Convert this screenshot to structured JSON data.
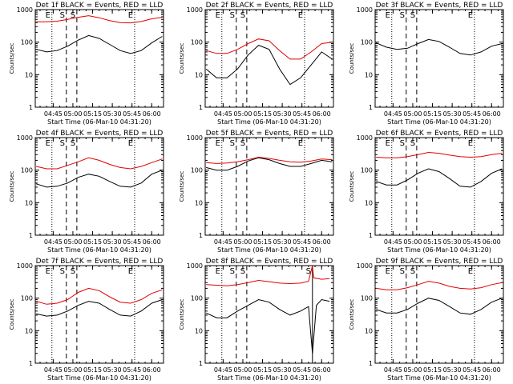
{
  "figure": {
    "background": "#ffffff",
    "axis_color": "#000000",
    "events_color": "#000000",
    "lld_color": "#e00000",
    "rows": 3,
    "cols": 3
  },
  "chart_data": [
    {
      "type": "line",
      "title": "Det 1f BLACK = Events, RED = LLD",
      "xlabel": "Start Time (06-Mar-10 04:31:20)",
      "ylabel": "Counts/sec",
      "yscale": "log",
      "ylim": [
        1,
        1000
      ],
      "yticks": [
        "1",
        "10",
        "100",
        "1000"
      ],
      "xticks": [
        "04:45",
        "05:00",
        "05:15",
        "05:30",
        "05:45",
        "06:00"
      ],
      "xlim": [
        "04:31:20",
        "06:09:00"
      ],
      "markers": [
        {
          "label": "E",
          "time": "04:44:00",
          "style": "dotted"
        },
        {
          "label": "S",
          "time": "04:55:00",
          "style": "dashed"
        },
        {
          "label": "S",
          "time": "05:03:00",
          "style": "dashed"
        },
        {
          "label": "E",
          "time": "05:47:00",
          "style": "dotted"
        }
      ],
      "series": [
        {
          "name": "Events",
          "x": [
            "04:32",
            "04:40",
            "04:48",
            "04:56",
            "05:04",
            "05:12",
            "05:20",
            "05:28",
            "05:36",
            "05:44",
            "05:52",
            "06:00",
            "06:08"
          ],
          "y": [
            60,
            50,
            55,
            75,
            115,
            160,
            130,
            85,
            55,
            45,
            55,
            95,
            150
          ]
        },
        {
          "name": "LLD",
          "x": [
            "04:32",
            "04:40",
            "04:48",
            "04:56",
            "05:04",
            "05:12",
            "05:20",
            "05:28",
            "05:36",
            "05:44",
            "05:52",
            "06:00",
            "06:08"
          ],
          "y": [
            420,
            420,
            440,
            500,
            580,
            650,
            560,
            460,
            400,
            390,
            430,
            520,
            580
          ]
        }
      ]
    },
    {
      "type": "line",
      "title": "Det 2f BLACK = Events, RED = LLD",
      "xlabel": "Start Time (06-Mar-10 04:31:20)",
      "ylabel": "Counts/sec",
      "yscale": "log",
      "ylim": [
        1,
        1000
      ],
      "yticks": [
        "1",
        "10",
        "100",
        "1000"
      ],
      "xticks": [
        "04:45",
        "05:00",
        "05:15",
        "05:30",
        "05:45",
        "06:00"
      ],
      "xlim": [
        "04:31:20",
        "06:09:00"
      ],
      "markers": [
        {
          "label": "E",
          "time": "04:44:00",
          "style": "dotted"
        },
        {
          "label": "S",
          "time": "04:55:00",
          "style": "dashed"
        },
        {
          "label": "S",
          "time": "05:03:00",
          "style": "dashed"
        },
        {
          "label": "E",
          "time": "05:47:00",
          "style": "dotted"
        }
      ],
      "series": [
        {
          "name": "Events",
          "x": [
            "04:32",
            "04:40",
            "04:48",
            "04:56",
            "05:04",
            "05:12",
            "05:20",
            "05:28",
            "05:36",
            "05:44",
            "05:52",
            "06:00",
            "06:08"
          ],
          "y": [
            15,
            8,
            8,
            15,
            40,
            80,
            60,
            15,
            5,
            8,
            20,
            50,
            30
          ]
        },
        {
          "name": "LLD",
          "x": [
            "04:32",
            "04:40",
            "04:48",
            "04:56",
            "05:04",
            "05:12",
            "05:20",
            "05:28",
            "05:36",
            "05:44",
            "05:52",
            "06:00",
            "06:08"
          ],
          "y": [
            55,
            45,
            45,
            60,
            90,
            125,
            110,
            55,
            30,
            30,
            50,
            90,
            100
          ]
        }
      ]
    },
    {
      "type": "line",
      "title": "Det 3f BLACK = Events, RED = LLD",
      "xlabel": "Start Time (06-Mar-10 04:31:20)",
      "ylabel": "Counts/sec",
      "yscale": "log",
      "ylim": [
        1,
        1000
      ],
      "yticks": [
        "1",
        "10",
        "100",
        "1000"
      ],
      "xticks": [
        "04:45",
        "05:00",
        "05:15",
        "05:30",
        "05:45",
        "06:00"
      ],
      "xlim": [
        "04:31:20",
        "06:09:00"
      ],
      "markers": [
        {
          "label": "E",
          "time": "04:44:00",
          "style": "dotted"
        },
        {
          "label": "S",
          "time": "04:55:00",
          "style": "dashed"
        },
        {
          "label": "S",
          "time": "05:03:00",
          "style": "dashed"
        },
        {
          "label": "E",
          "time": "05:47:00",
          "style": "dotted"
        }
      ],
      "series": [
        {
          "name": "Events",
          "x": [
            "04:32",
            "04:40",
            "04:48",
            "04:56",
            "05:04",
            "05:12",
            "05:20",
            "05:28",
            "05:36",
            "05:44",
            "05:52",
            "06:00",
            "06:08"
          ],
          "y": [
            95,
            70,
            60,
            65,
            90,
            120,
            105,
            70,
            45,
            40,
            50,
            75,
            90
          ]
        }
      ]
    },
    {
      "type": "line",
      "title": "Det 4f BLACK = Events, RED = LLD",
      "xlabel": "Start Time (06-Mar-10 04:31:20)",
      "ylabel": "Counts/sec",
      "yscale": "log",
      "ylim": [
        1,
        1000
      ],
      "yticks": [
        "1",
        "10",
        "100",
        "1000"
      ],
      "xticks": [
        "04:45",
        "05:00",
        "05:15",
        "05:30",
        "05:45",
        "06:00"
      ],
      "xlim": [
        "04:31:20",
        "06:09:00"
      ],
      "markers": [
        {
          "label": "E",
          "time": "04:44:00",
          "style": "dotted"
        },
        {
          "label": "S",
          "time": "04:55:00",
          "style": "dashed"
        },
        {
          "label": "S",
          "time": "05:03:00",
          "style": "dashed"
        },
        {
          "label": "E",
          "time": "05:47:00",
          "style": "dotted"
        }
      ],
      "series": [
        {
          "name": "Events",
          "x": [
            "04:32",
            "04:40",
            "04:48",
            "04:56",
            "05:04",
            "05:12",
            "05:20",
            "05:28",
            "05:36",
            "05:44",
            "05:52",
            "06:00",
            "06:08"
          ],
          "y": [
            38,
            30,
            32,
            40,
            60,
            75,
            65,
            45,
            32,
            30,
            40,
            75,
            100
          ]
        },
        {
          "name": "LLD",
          "x": [
            "04:32",
            "04:40",
            "04:48",
            "04:56",
            "05:04",
            "05:12",
            "05:20",
            "05:28",
            "05:36",
            "05:44",
            "05:52",
            "06:00",
            "06:08"
          ],
          "y": [
            130,
            110,
            110,
            140,
            180,
            240,
            200,
            150,
            120,
            110,
            130,
            170,
            220
          ]
        }
      ]
    },
    {
      "type": "line",
      "title": "Det 5f BLACK = Events, RED = LLD",
      "xlabel": "Start Time (06-Mar-10 04:31:20)",
      "ylabel": "Counts/sec",
      "yscale": "log",
      "ylim": [
        1,
        1000
      ],
      "yticks": [
        "1",
        "10",
        "100",
        "1000"
      ],
      "xticks": [
        "04:45",
        "05:00",
        "05:15",
        "05:30",
        "05:45",
        "06:00"
      ],
      "xlim": [
        "04:31:20",
        "06:09:00"
      ],
      "markers": [
        {
          "label": "E",
          "time": "04:44:00",
          "style": "dotted"
        },
        {
          "label": "S",
          "time": "04:55:00",
          "style": "dashed"
        },
        {
          "label": "S",
          "time": "05:03:00",
          "style": "dashed"
        },
        {
          "label": "E",
          "time": "05:47:00",
          "style": "dotted"
        }
      ],
      "series": [
        {
          "name": "Events",
          "x": [
            "04:32",
            "04:40",
            "04:48",
            "04:56",
            "05:04",
            "05:12",
            "05:20",
            "05:28",
            "05:36",
            "05:44",
            "05:52",
            "06:00",
            "06:08"
          ],
          "y": [
            120,
            100,
            100,
            130,
            190,
            240,
            210,
            160,
            130,
            130,
            160,
            200,
            180
          ]
        },
        {
          "name": "LLD",
          "x": [
            "04:32",
            "04:40",
            "04:48",
            "04:56",
            "05:04",
            "05:12",
            "05:20",
            "05:28",
            "05:36",
            "05:44",
            "05:52",
            "06:00",
            "06:08"
          ],
          "y": [
            170,
            160,
            165,
            180,
            210,
            250,
            230,
            200,
            180,
            175,
            190,
            220,
            210
          ]
        }
      ]
    },
    {
      "type": "line",
      "title": "Det 6f BLACK = Events, RED = LLD",
      "xlabel": "Start Time (06-Mar-10 04:31:20)",
      "ylabel": "Counts/sec",
      "yscale": "log",
      "ylim": [
        1,
        1000
      ],
      "yticks": [
        "1",
        "10",
        "100",
        "1000"
      ],
      "xticks": [
        "04:45",
        "05:00",
        "05:15",
        "05:30",
        "05:45",
        "06:00"
      ],
      "xlim": [
        "04:31:20",
        "06:09:00"
      ],
      "markers": [
        {
          "label": "E",
          "time": "04:44:00",
          "style": "dotted"
        },
        {
          "label": "S",
          "time": "04:55:00",
          "style": "dashed"
        },
        {
          "label": "S",
          "time": "05:03:00",
          "style": "dashed"
        },
        {
          "label": "E",
          "time": "05:47:00",
          "style": "dotted"
        }
      ],
      "series": [
        {
          "name": "Events",
          "x": [
            "04:32",
            "04:40",
            "04:48",
            "04:56",
            "05:04",
            "05:12",
            "05:20",
            "05:28",
            "05:36",
            "05:44",
            "05:52",
            "06:00",
            "06:08"
          ],
          "y": [
            45,
            35,
            35,
            50,
            80,
            110,
            90,
            55,
            32,
            30,
            45,
            80,
            110
          ]
        },
        {
          "name": "LLD",
          "x": [
            "04:32",
            "04:40",
            "04:48",
            "04:56",
            "05:04",
            "05:12",
            "05:20",
            "05:28",
            "05:36",
            "05:44",
            "05:52",
            "06:00",
            "06:08"
          ],
          "y": [
            250,
            240,
            240,
            260,
            300,
            350,
            330,
            290,
            260,
            250,
            260,
            300,
            330
          ]
        }
      ]
    },
    {
      "type": "line",
      "title": "Det 7f BLACK = Events, RED = LLD",
      "xlabel": "Start Time (06-Mar-10 04:31:20)",
      "ylabel": "Counts/sec",
      "yscale": "log",
      "ylim": [
        1,
        1000
      ],
      "yticks": [
        "1",
        "10",
        "100",
        "1000"
      ],
      "xticks": [
        "04:45",
        "05:00",
        "05:15",
        "05:30",
        "05:45",
        "06:00"
      ],
      "xlim": [
        "04:31:20",
        "06:09:00"
      ],
      "markers": [
        {
          "label": "E",
          "time": "04:44:00",
          "style": "dotted"
        },
        {
          "label": "S",
          "time": "04:55:00",
          "style": "dashed"
        },
        {
          "label": "S",
          "time": "05:03:00",
          "style": "dashed"
        },
        {
          "label": "E",
          "time": "05:47:00",
          "style": "dotted"
        }
      ],
      "series": [
        {
          "name": "Events",
          "x": [
            "04:32",
            "04:40",
            "04:48",
            "04:56",
            "05:04",
            "05:12",
            "05:20",
            "05:28",
            "05:36",
            "05:44",
            "05:52",
            "06:00",
            "06:08"
          ],
          "y": [
            33,
            28,
            30,
            40,
            60,
            80,
            70,
            45,
            30,
            28,
            40,
            70,
            90
          ]
        },
        {
          "name": "LLD",
          "x": [
            "04:32",
            "04:40",
            "04:48",
            "04:56",
            "05:04",
            "05:12",
            "05:20",
            "05:28",
            "05:36",
            "05:44",
            "05:52",
            "06:00",
            "06:08"
          ],
          "y": [
            80,
            65,
            70,
            90,
            150,
            200,
            170,
            110,
            75,
            70,
            90,
            140,
            180
          ]
        }
      ]
    },
    {
      "type": "line",
      "title": "Det 8f BLACK = Events, RED = LLD",
      "xlabel": "Start Time (06-Mar-10 04:31:20)",
      "ylabel": "Counts/sec",
      "yscale": "log",
      "ylim": [
        1,
        1000
      ],
      "yticks": [
        "1",
        "10",
        "100",
        "1000"
      ],
      "xticks": [
        "04:45",
        "05:00",
        "05:15",
        "05:30",
        "05:45",
        "06:00"
      ],
      "xlim": [
        "04:31:20",
        "06:09:00"
      ],
      "markers": [
        {
          "label": "E",
          "time": "04:44:00",
          "style": "dotted"
        },
        {
          "label": "S",
          "time": "04:55:00",
          "style": "dashed"
        },
        {
          "label": "S",
          "time": "05:03:00",
          "style": "dashed"
        },
        {
          "label": "S",
          "time": "05:53:00",
          "style": "solid"
        }
      ],
      "series": [
        {
          "name": "Events",
          "x": [
            "04:32",
            "04:40",
            "04:48",
            "04:56",
            "05:04",
            "05:12",
            "05:20",
            "05:28",
            "05:36",
            "05:44",
            "05:50",
            "05:53",
            "05:56",
            "06:00",
            "06:06"
          ],
          "y": [
            35,
            25,
            25,
            40,
            60,
            90,
            75,
            45,
            30,
            40,
            55,
            2,
            60,
            90,
            80
          ]
        },
        {
          "name": "LLD",
          "x": [
            "04:32",
            "04:40",
            "04:48",
            "04:56",
            "05:04",
            "05:12",
            "05:20",
            "05:28",
            "05:36",
            "05:44",
            "05:50",
            "05:53",
            "05:54",
            "06:00",
            "06:06"
          ],
          "y": [
            260,
            250,
            240,
            260,
            300,
            350,
            320,
            290,
            280,
            290,
            330,
            1000,
            420,
            380,
            400
          ]
        }
      ]
    },
    {
      "type": "line",
      "title": "Det 9f BLACK = Events, RED = LLD",
      "xlabel": "Start Time (06-Mar-10 04:31:20)",
      "ylabel": "Counts/sec",
      "yscale": "log",
      "ylim": [
        1,
        1000
      ],
      "yticks": [
        "1",
        "10",
        "100",
        "1000"
      ],
      "xticks": [
        "04:45",
        "05:00",
        "05:15",
        "05:30",
        "05:45",
        "06:00"
      ],
      "xlim": [
        "04:31:20",
        "06:09:00"
      ],
      "markers": [
        {
          "label": "E",
          "time": "04:44:00",
          "style": "dotted"
        },
        {
          "label": "S",
          "time": "04:55:00",
          "style": "dashed"
        },
        {
          "label": "S",
          "time": "05:03:00",
          "style": "dashed"
        },
        {
          "label": "E",
          "time": "05:47:00",
          "style": "dotted"
        }
      ],
      "series": [
        {
          "name": "Events",
          "x": [
            "04:32",
            "04:40",
            "04:48",
            "04:56",
            "05:04",
            "05:12",
            "05:20",
            "05:28",
            "05:36",
            "05:44",
            "05:52",
            "06:00",
            "06:08"
          ],
          "y": [
            45,
            35,
            35,
            45,
            70,
            100,
            85,
            55,
            35,
            32,
            45,
            75,
            100
          ]
        },
        {
          "name": "LLD",
          "x": [
            "04:32",
            "04:40",
            "04:48",
            "04:56",
            "05:04",
            "05:12",
            "05:20",
            "05:28",
            "05:36",
            "05:44",
            "05:52",
            "06:00",
            "06:08"
          ],
          "y": [
            200,
            180,
            180,
            210,
            260,
            330,
            290,
            230,
            200,
            190,
            210,
            260,
            300
          ]
        }
      ]
    }
  ]
}
